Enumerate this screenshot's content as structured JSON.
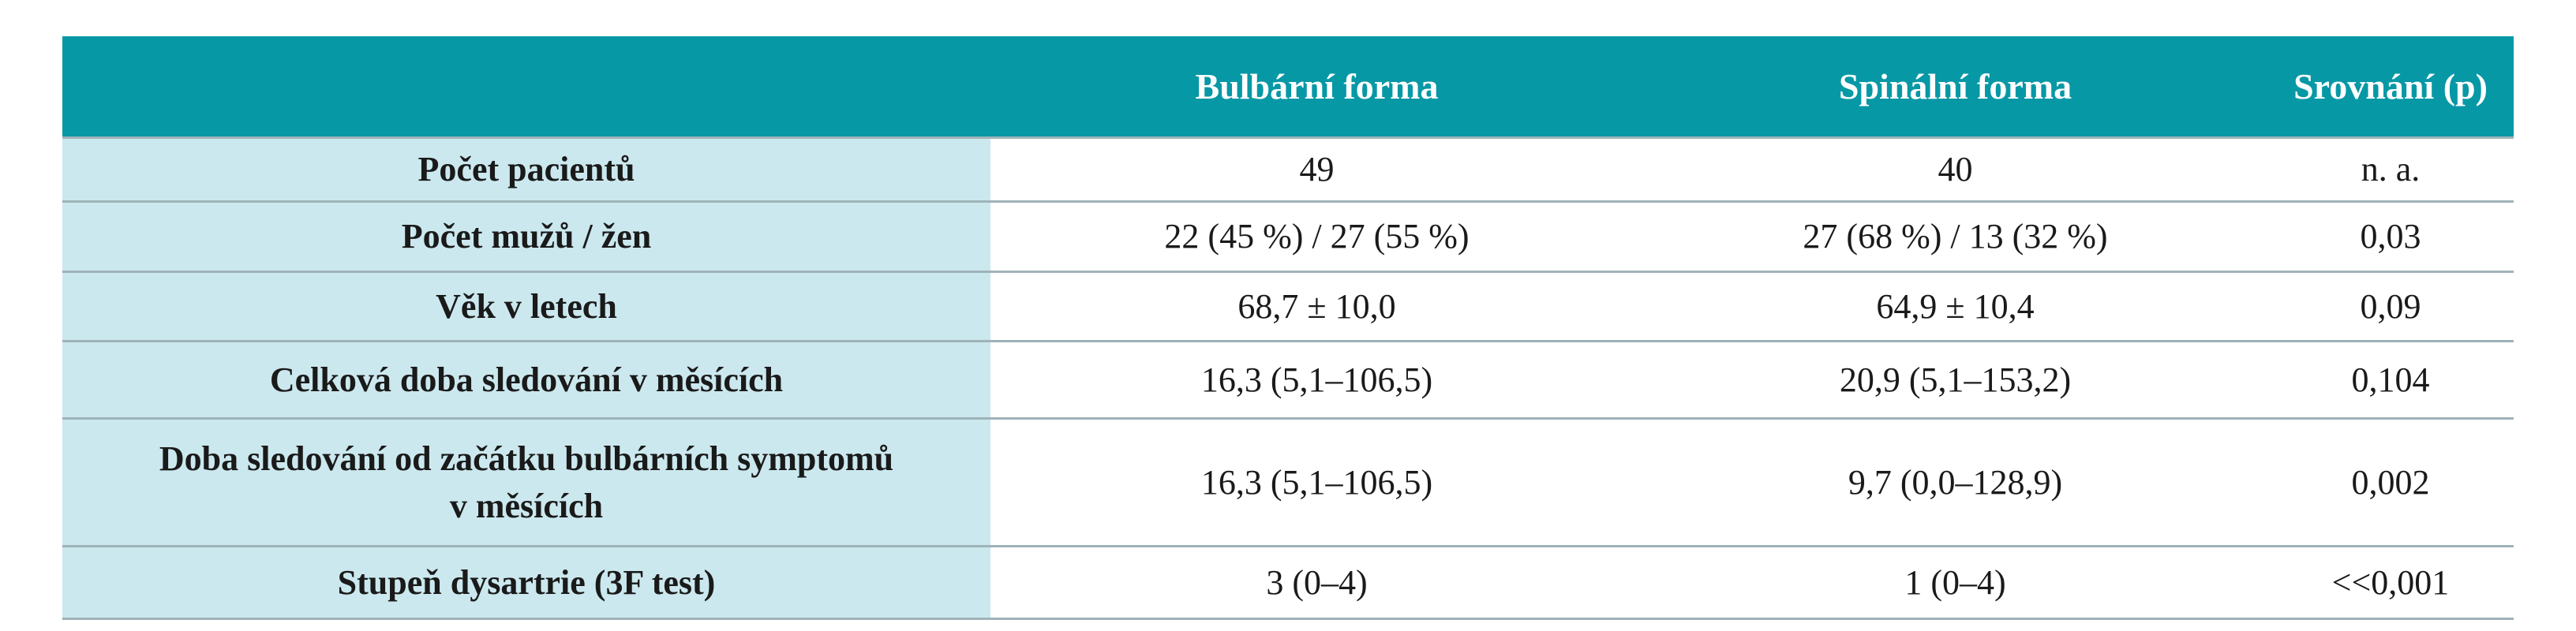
{
  "table": {
    "header": [
      "Bulbární forma",
      "Spinální forma",
      "Srovnání (p)"
    ],
    "rows": [
      [
        "Počet pacientů",
        "49",
        "40",
        "n. a."
      ],
      [
        "Počet mužů / žen",
        "22 (45 %) / 27 (55 %)",
        "27 (68 %) / 13 (32 %)",
        "0,03"
      ],
      [
        "Věk v letech",
        "68,7 ± 10,0",
        "64,9 ± 10,4",
        "0,09"
      ],
      [
        "Celková doba sledování v měsících",
        "16,3 (5,1–106,5)",
        "20,9 (5,1–153,2)",
        "0,104"
      ],
      [
        "Doba sledování od začátku bulbárních symptomů v měsících",
        "16,3 (5,1–106,5)",
        "9,7 (0,0–128,9)",
        "0,002"
      ],
      [
        "Stupeň dysartrie (3F test)",
        "3 (0–4)",
        "1 (0–4)",
        "<<0,001"
      ]
    ]
  }
}
